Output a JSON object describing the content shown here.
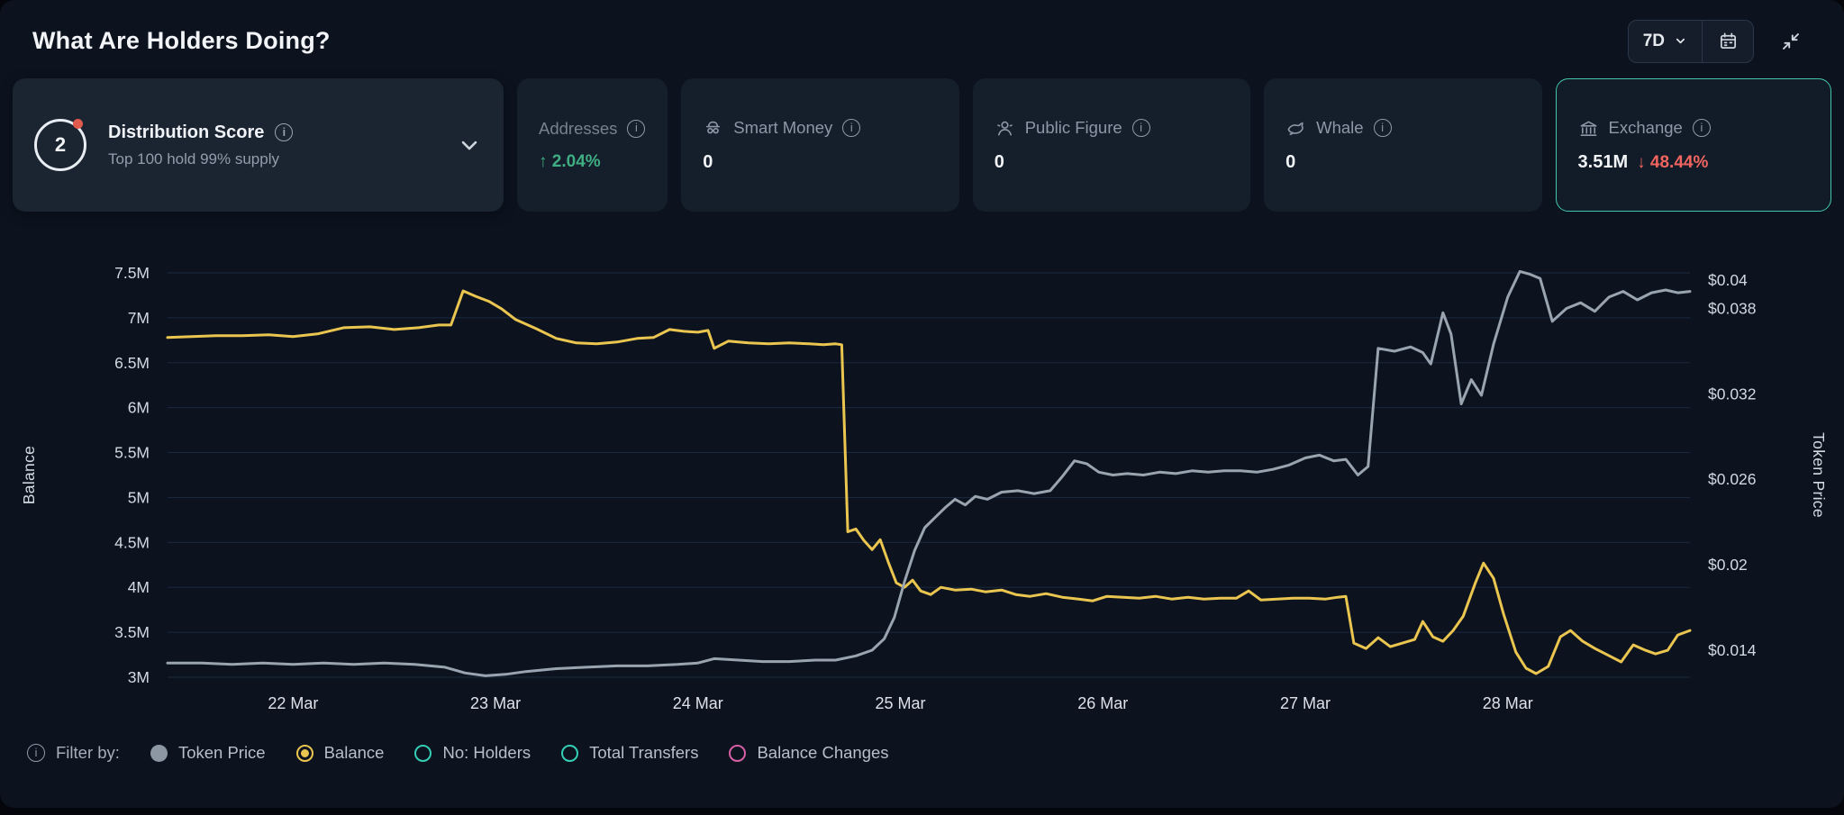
{
  "header": {
    "title": "What Are Holders Doing?",
    "range_label": "7D"
  },
  "cards": {
    "distribution": {
      "score": "2",
      "title": "Distribution Score",
      "subtitle": "Top 100 hold 99% supply"
    },
    "addresses": {
      "label": "Addresses",
      "arrow": "↑",
      "change": "2.04%"
    },
    "smart_money": {
      "label": "Smart Money",
      "value": "0"
    },
    "public_figure": {
      "label": "Public Figure",
      "value": "0"
    },
    "whale": {
      "label": "Whale",
      "value": "0"
    },
    "exchange": {
      "label": "Exchange",
      "value": "3.51M",
      "arrow": "↓",
      "change": "48.44%"
    }
  },
  "colors": {
    "accent_teal": "#41c6ad",
    "positive": "#3fae83",
    "negative": "#f0655f",
    "balance_line": "#eac54f",
    "price_line": "#9aa4b1"
  },
  "legend": {
    "label": "Filter by:",
    "items": [
      {
        "label": "Token Price",
        "color": "#8d97a4",
        "style": "filled"
      },
      {
        "label": "Balance",
        "color": "#eac54f",
        "style": "selected"
      },
      {
        "label": "No: Holders",
        "color": "#35cfb6",
        "style": "ring"
      },
      {
        "label": "Total Transfers",
        "color": "#35cfb6",
        "style": "ring"
      },
      {
        "label": "Balance Changes",
        "color": "#d85fa4",
        "style": "ring"
      }
    ]
  },
  "chart_data": {
    "type": "line",
    "x_axis": {
      "tick_labels": [
        "22 Mar",
        "23 Mar",
        "24 Mar",
        "25 Mar",
        "26 Mar",
        "27 Mar",
        "28 Mar"
      ],
      "tick_values": [
        22,
        23,
        24,
        25,
        26,
        27,
        28
      ],
      "domain": [
        21.38,
        28.9
      ]
    },
    "left_axis": {
      "label": "Balance",
      "tick_labels": [
        "3M",
        "3.5M",
        "4M",
        "4.5M",
        "5M",
        "5.5M",
        "6M",
        "6.5M",
        "7M",
        "7.5M"
      ],
      "tick_values": [
        3,
        3.5,
        4,
        4.5,
        5,
        5.5,
        6,
        6.5,
        7,
        7.5
      ],
      "domain": [
        3,
        7.5
      ]
    },
    "right_axis": {
      "label": "Token Price",
      "tick_labels": [
        "$0.014",
        "$0.02",
        "$0.026",
        "$0.032",
        "$0.038",
        "$0.04"
      ],
      "tick_values": [
        0.014,
        0.02,
        0.026,
        0.032,
        0.038,
        0.04
      ],
      "domain": [
        0.0121,
        0.0405
      ]
    },
    "grid": true,
    "legend_position": "bottom",
    "series": [
      {
        "name": "Balance",
        "color": "#eac54f",
        "axis": "left",
        "unit": "M",
        "points": [
          [
            21.38,
            6.78
          ],
          [
            21.5,
            6.79
          ],
          [
            21.62,
            6.8
          ],
          [
            21.75,
            6.8
          ],
          [
            21.88,
            6.81
          ],
          [
            22.0,
            6.79
          ],
          [
            22.12,
            6.82
          ],
          [
            22.25,
            6.89
          ],
          [
            22.38,
            6.9
          ],
          [
            22.5,
            6.87
          ],
          [
            22.62,
            6.89
          ],
          [
            22.72,
            6.92
          ],
          [
            22.78,
            6.92
          ],
          [
            22.84,
            7.3
          ],
          [
            22.9,
            7.24
          ],
          [
            22.97,
            7.18
          ],
          [
            23.03,
            7.1
          ],
          [
            23.1,
            6.98
          ],
          [
            23.2,
            6.88
          ],
          [
            23.3,
            6.77
          ],
          [
            23.4,
            6.72
          ],
          [
            23.5,
            6.71
          ],
          [
            23.6,
            6.73
          ],
          [
            23.7,
            6.77
          ],
          [
            23.78,
            6.78
          ],
          [
            23.86,
            6.87
          ],
          [
            23.93,
            6.85
          ],
          [
            24.0,
            6.84
          ],
          [
            24.05,
            6.86
          ],
          [
            24.08,
            6.66
          ],
          [
            24.15,
            6.74
          ],
          [
            24.25,
            6.72
          ],
          [
            24.35,
            6.71
          ],
          [
            24.45,
            6.72
          ],
          [
            24.55,
            6.71
          ],
          [
            24.62,
            6.7
          ],
          [
            24.68,
            6.71
          ],
          [
            24.71,
            6.7
          ],
          [
            24.74,
            4.62
          ],
          [
            24.78,
            4.65
          ],
          [
            24.82,
            4.52
          ],
          [
            24.86,
            4.42
          ],
          [
            24.9,
            4.53
          ],
          [
            24.94,
            4.28
          ],
          [
            24.98,
            4.05
          ],
          [
            25.02,
            4.0
          ],
          [
            25.06,
            4.08
          ],
          [
            25.1,
            3.96
          ],
          [
            25.15,
            3.92
          ],
          [
            25.2,
            4.0
          ],
          [
            25.27,
            3.97
          ],
          [
            25.35,
            3.98
          ],
          [
            25.42,
            3.95
          ],
          [
            25.5,
            3.97
          ],
          [
            25.57,
            3.92
          ],
          [
            25.64,
            3.9
          ],
          [
            25.72,
            3.93
          ],
          [
            25.8,
            3.89
          ],
          [
            25.88,
            3.87
          ],
          [
            25.95,
            3.85
          ],
          [
            26.02,
            3.9
          ],
          [
            26.1,
            3.89
          ],
          [
            26.18,
            3.88
          ],
          [
            26.26,
            3.9
          ],
          [
            26.34,
            3.87
          ],
          [
            26.42,
            3.89
          ],
          [
            26.5,
            3.87
          ],
          [
            26.58,
            3.88
          ],
          [
            26.66,
            3.88
          ],
          [
            26.72,
            3.96
          ],
          [
            26.78,
            3.86
          ],
          [
            26.86,
            3.87
          ],
          [
            26.94,
            3.88
          ],
          [
            27.02,
            3.88
          ],
          [
            27.1,
            3.87
          ],
          [
            27.16,
            3.89
          ],
          [
            27.2,
            3.9
          ],
          [
            27.24,
            3.38
          ],
          [
            27.3,
            3.32
          ],
          [
            27.36,
            3.44
          ],
          [
            27.42,
            3.34
          ],
          [
            27.48,
            3.38
          ],
          [
            27.54,
            3.42
          ],
          [
            27.58,
            3.62
          ],
          [
            27.63,
            3.45
          ],
          [
            27.68,
            3.4
          ],
          [
            27.73,
            3.52
          ],
          [
            27.78,
            3.68
          ],
          [
            27.84,
            4.05
          ],
          [
            27.88,
            4.27
          ],
          [
            27.93,
            4.1
          ],
          [
            27.98,
            3.7
          ],
          [
            28.04,
            3.28
          ],
          [
            28.09,
            3.1
          ],
          [
            28.14,
            3.04
          ],
          [
            28.2,
            3.12
          ],
          [
            28.26,
            3.45
          ],
          [
            28.31,
            3.52
          ],
          [
            28.37,
            3.4
          ],
          [
            28.43,
            3.32
          ],
          [
            28.5,
            3.24
          ],
          [
            28.56,
            3.17
          ],
          [
            28.62,
            3.36
          ],
          [
            28.68,
            3.3
          ],
          [
            28.73,
            3.26
          ],
          [
            28.79,
            3.3
          ],
          [
            28.84,
            3.47
          ],
          [
            28.9,
            3.52
          ]
        ]
      },
      {
        "name": "Token Price",
        "color": "#9aa4b1",
        "axis": "right",
        "unit": "$",
        "points": [
          [
            21.38,
            0.0131
          ],
          [
            21.55,
            0.0131
          ],
          [
            21.7,
            0.013
          ],
          [
            21.85,
            0.0131
          ],
          [
            22.0,
            0.013
          ],
          [
            22.15,
            0.0131
          ],
          [
            22.3,
            0.013
          ],
          [
            22.45,
            0.0131
          ],
          [
            22.6,
            0.013
          ],
          [
            22.75,
            0.0128
          ],
          [
            22.85,
            0.0124
          ],
          [
            22.95,
            0.0122
          ],
          [
            23.05,
            0.0123
          ],
          [
            23.15,
            0.0125
          ],
          [
            23.3,
            0.0127
          ],
          [
            23.45,
            0.0128
          ],
          [
            23.6,
            0.0129
          ],
          [
            23.75,
            0.0129
          ],
          [
            23.9,
            0.013
          ],
          [
            24.0,
            0.0131
          ],
          [
            24.08,
            0.0134
          ],
          [
            24.2,
            0.0133
          ],
          [
            24.32,
            0.0132
          ],
          [
            24.45,
            0.0132
          ],
          [
            24.58,
            0.0133
          ],
          [
            24.68,
            0.0133
          ],
          [
            24.78,
            0.0136
          ],
          [
            24.86,
            0.014
          ],
          [
            24.92,
            0.0148
          ],
          [
            24.97,
            0.0163
          ],
          [
            25.02,
            0.0188
          ],
          [
            25.07,
            0.021
          ],
          [
            25.12,
            0.0226
          ],
          [
            25.17,
            0.0233
          ],
          [
            25.22,
            0.024
          ],
          [
            25.27,
            0.0246
          ],
          [
            25.32,
            0.0242
          ],
          [
            25.37,
            0.0248
          ],
          [
            25.43,
            0.0246
          ],
          [
            25.5,
            0.0251
          ],
          [
            25.58,
            0.0252
          ],
          [
            25.66,
            0.025
          ],
          [
            25.74,
            0.0252
          ],
          [
            25.8,
            0.0262
          ],
          [
            25.86,
            0.0273
          ],
          [
            25.92,
            0.0271
          ],
          [
            25.98,
            0.0265
          ],
          [
            26.05,
            0.0263
          ],
          [
            26.12,
            0.0264
          ],
          [
            26.2,
            0.0263
          ],
          [
            26.28,
            0.0265
          ],
          [
            26.36,
            0.0264
          ],
          [
            26.44,
            0.0266
          ],
          [
            26.52,
            0.0265
          ],
          [
            26.6,
            0.0266
          ],
          [
            26.68,
            0.0266
          ],
          [
            26.76,
            0.0265
          ],
          [
            26.84,
            0.0267
          ],
          [
            26.92,
            0.027
          ],
          [
            27.0,
            0.0275
          ],
          [
            27.07,
            0.0277
          ],
          [
            27.14,
            0.0273
          ],
          [
            27.2,
            0.0274
          ],
          [
            27.26,
            0.0263
          ],
          [
            27.31,
            0.0269
          ],
          [
            27.36,
            0.0352
          ],
          [
            27.44,
            0.035
          ],
          [
            27.52,
            0.0353
          ],
          [
            27.58,
            0.0349
          ],
          [
            27.62,
            0.0341
          ],
          [
            27.68,
            0.0377
          ],
          [
            27.72,
            0.0362
          ],
          [
            27.77,
            0.0313
          ],
          [
            27.82,
            0.033
          ],
          [
            27.87,
            0.0319
          ],
          [
            27.93,
            0.0355
          ],
          [
            28.0,
            0.0388
          ],
          [
            28.06,
            0.0406
          ],
          [
            28.11,
            0.0404
          ],
          [
            28.16,
            0.0401
          ],
          [
            28.22,
            0.0371
          ],
          [
            28.29,
            0.038
          ],
          [
            28.36,
            0.0384
          ],
          [
            28.43,
            0.0378
          ],
          [
            28.5,
            0.0388
          ],
          [
            28.57,
            0.0392
          ],
          [
            28.64,
            0.0386
          ],
          [
            28.71,
            0.0391
          ],
          [
            28.78,
            0.0393
          ],
          [
            28.84,
            0.0391
          ],
          [
            28.9,
            0.0392
          ]
        ]
      }
    ]
  }
}
